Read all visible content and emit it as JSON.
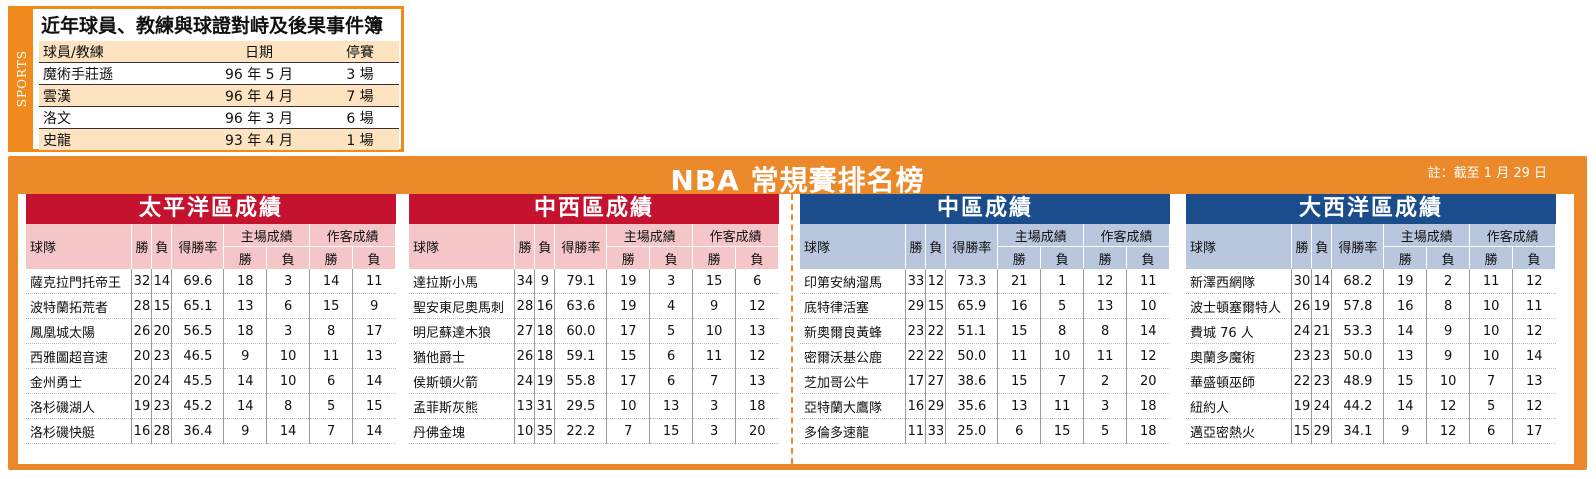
{
  "incidents": {
    "side_label": "SPORTS",
    "title": "近年球員、教練與球證對峙及後果事件簿",
    "headers": {
      "player": "球員/教練",
      "date": "日期",
      "suspension": "停賽"
    },
    "rows": [
      {
        "player": "魔術手莊遜",
        "date": "96 年 5 月",
        "suspension": "3 場"
      },
      {
        "player": "雲漢",
        "date": "96 年 4 月",
        "suspension": "7 場"
      },
      {
        "player": "洛文",
        "date": "96 年 3 月",
        "suspension": "6 場"
      },
      {
        "player": "史龍",
        "date": "93 年 4 月",
        "suspension": "1 場"
      }
    ]
  },
  "nba": {
    "title": "NBA 常規賽排名榜",
    "note": "註：截至 1 月 29 日",
    "columns": {
      "team": "球隊",
      "wins": "勝",
      "losses": "負",
      "pct": "得勝率",
      "home": "主場成績",
      "away": "作客成績",
      "w": "勝",
      "l": "負"
    },
    "divisions": [
      {
        "name": "太平洋區成績",
        "teams": [
          [
            "薩克拉門托帝王",
            "32",
            "14",
            "69.6",
            "18",
            "3",
            "14",
            "11"
          ],
          [
            "波特蘭拓荒者",
            "28",
            "15",
            "65.1",
            "13",
            "6",
            "15",
            "9"
          ],
          [
            "鳳凰城太陽",
            "26",
            "20",
            "56.5",
            "18",
            "3",
            "8",
            "17"
          ],
          [
            "西雅圖超音速",
            "20",
            "23",
            "46.5",
            "9",
            "10",
            "11",
            "13"
          ],
          [
            "金州勇士",
            "20",
            "24",
            "45.5",
            "14",
            "10",
            "6",
            "14"
          ],
          [
            "洛杉磯湖人",
            "19",
            "23",
            "45.2",
            "14",
            "8",
            "5",
            "15"
          ],
          [
            "洛杉磯快艇",
            "16",
            "28",
            "36.4",
            "9",
            "14",
            "7",
            "14"
          ]
        ]
      },
      {
        "name": "中西區成績",
        "teams": [
          [
            "達拉斯小馬",
            "34",
            "9",
            "79.1",
            "19",
            "3",
            "15",
            "6"
          ],
          [
            "聖安東尼奧馬刺",
            "28",
            "16",
            "63.6",
            "19",
            "4",
            "9",
            "12"
          ],
          [
            "明尼蘇達木狼",
            "27",
            "18",
            "60.0",
            "17",
            "5",
            "10",
            "13"
          ],
          [
            "猶他爵士",
            "26",
            "18",
            "59.1",
            "15",
            "6",
            "11",
            "12"
          ],
          [
            "侯斯頓火箭",
            "24",
            "19",
            "55.8",
            "17",
            "6",
            "7",
            "13"
          ],
          [
            "孟菲斯灰熊",
            "13",
            "31",
            "29.5",
            "10",
            "13",
            "3",
            "18"
          ],
          [
            "丹佛金塊",
            "10",
            "35",
            "22.2",
            "7",
            "15",
            "3",
            "20"
          ]
        ]
      },
      {
        "name": "中區成績",
        "teams": [
          [
            "印第安納溜馬",
            "33",
            "12",
            "73.3",
            "21",
            "1",
            "12",
            "11"
          ],
          [
            "底特律活塞",
            "29",
            "15",
            "65.9",
            "16",
            "5",
            "13",
            "10"
          ],
          [
            "新奧爾良黃蜂",
            "23",
            "22",
            "51.1",
            "15",
            "8",
            "8",
            "14"
          ],
          [
            "密爾沃基公鹿",
            "22",
            "22",
            "50.0",
            "11",
            "10",
            "11",
            "12"
          ],
          [
            "芝加哥公牛",
            "17",
            "27",
            "38.6",
            "15",
            "7",
            "2",
            "20"
          ],
          [
            "亞特蘭大鷹隊",
            "16",
            "29",
            "35.6",
            "13",
            "11",
            "3",
            "18"
          ],
          [
            "多倫多速龍",
            "11",
            "33",
            "25.0",
            "6",
            "15",
            "5",
            "18"
          ]
        ]
      },
      {
        "name": "大西洋區成績",
        "teams": [
          [
            "新澤西網隊",
            "30",
            "14",
            "68.2",
            "19",
            "2",
            "11",
            "12"
          ],
          [
            "波士頓塞爾特人",
            "26",
            "19",
            "57.8",
            "16",
            "8",
            "10",
            "11"
          ],
          [
            "費城 76 人",
            "24",
            "21",
            "53.3",
            "14",
            "9",
            "10",
            "12"
          ],
          [
            "奧蘭多魔術",
            "23",
            "23",
            "50.0",
            "13",
            "9",
            "10",
            "14"
          ],
          [
            "華盛頓巫師",
            "22",
            "23",
            "48.9",
            "15",
            "10",
            "7",
            "13"
          ],
          [
            "紐約人",
            "19",
            "24",
            "44.2",
            "14",
            "12",
            "5",
            "12"
          ],
          [
            "邁亞密熱火",
            "15",
            "29",
            "34.1",
            "9",
            "12",
            "6",
            "17"
          ]
        ]
      }
    ]
  }
}
